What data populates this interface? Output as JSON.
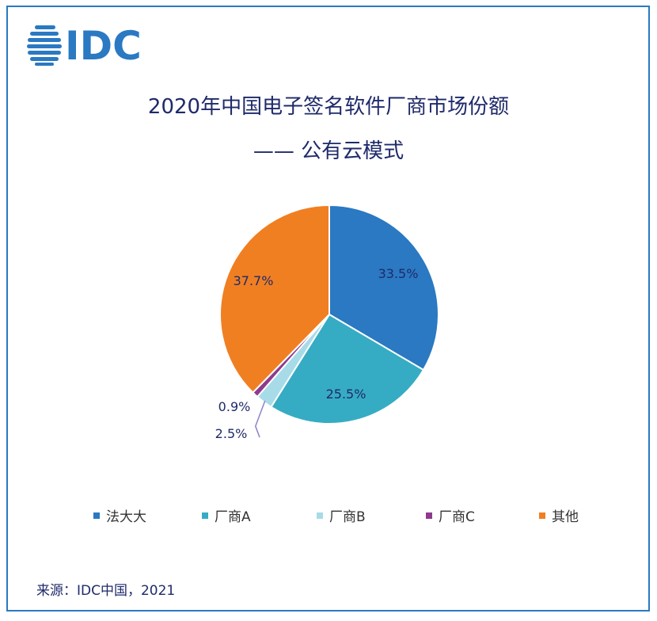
{
  "logo": {
    "text": "IDC",
    "color": "#2a79c2"
  },
  "title": {
    "line1": "2020年中国电子签名软件厂商市场份额",
    "line2": "—— 公有云模式"
  },
  "chart_data": {
    "type": "pie",
    "title": "2020年中国电子签名软件厂商市场份额 —— 公有云模式",
    "start_angle_deg": 0,
    "direction": "clockwise",
    "legend_position": "bottom",
    "slices": [
      {
        "name": "法大大",
        "value": 33.5,
        "label": "33.5%",
        "color": "#2a79c2"
      },
      {
        "name": "厂商A",
        "value": 25.5,
        "label": "25.5%",
        "color": "#36acc4"
      },
      {
        "name": "厂商B",
        "value": 2.5,
        "label": "2.5%",
        "color": "#a8dbe8"
      },
      {
        "name": "厂商C",
        "value": 0.9,
        "label": "0.9%",
        "color": "#8e3a8e"
      },
      {
        "name": "其他",
        "value": 37.7,
        "label": "37.7%",
        "color": "#f07f22"
      }
    ]
  },
  "source": "来源：IDC中国，2021"
}
